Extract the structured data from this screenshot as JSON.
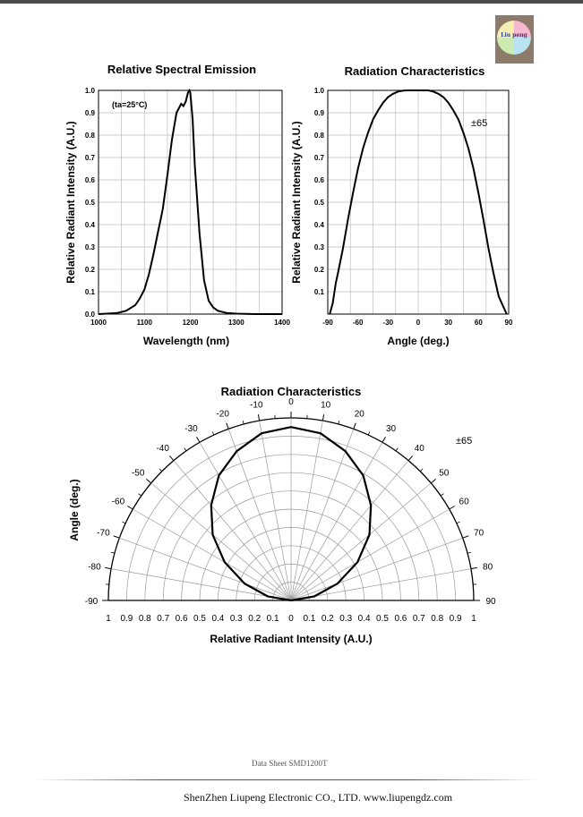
{
  "footer": {
    "sheet": "Data Sheet SMD1200T",
    "company": "ShenZhen Liupeng Electronic CO., LTD. www.liupengdz.com"
  },
  "logo": {
    "text": "Liu peng"
  },
  "chart_data": [
    {
      "type": "line",
      "title": "Relative Spectral Emission",
      "xlabel": "Wavelength (nm)",
      "ylabel": "Relative Radiant Intensity (A.U.)",
      "annotation": "(ta=25°C)",
      "xlim": [
        1000,
        1400
      ],
      "ylim": [
        0,
        1.0
      ],
      "x_ticks": [
        1000,
        1100,
        1200,
        1300,
        1400
      ],
      "y_ticks": [
        "0.0",
        "0.1",
        "0.2",
        "0.3",
        "0.4",
        "0.5",
        "0.6",
        "0.7",
        "0.8",
        "0.9",
        "1.0"
      ],
      "grid": true,
      "series": [
        {
          "x": [
            1000,
            1040,
            1060,
            1080,
            1090,
            1100,
            1110,
            1120,
            1130,
            1135,
            1140,
            1150,
            1160,
            1170,
            1180,
            1185,
            1190,
            1195,
            1198,
            1200,
            1205,
            1210,
            1220,
            1230,
            1240,
            1250,
            1260,
            1280,
            1300,
            1340,
            1400
          ],
          "y": [
            0.0,
            0.005,
            0.015,
            0.04,
            0.07,
            0.11,
            0.18,
            0.27,
            0.37,
            0.42,
            0.47,
            0.62,
            0.78,
            0.9,
            0.94,
            0.93,
            0.95,
            0.99,
            1.0,
            0.99,
            0.87,
            0.66,
            0.36,
            0.15,
            0.06,
            0.03,
            0.015,
            0.005,
            0.002,
            0.0,
            0.0
          ]
        }
      ]
    },
    {
      "type": "line",
      "title": "Radiation Characteristics",
      "xlabel": "Angle (deg.)",
      "ylabel": "Relative Radiant Intensity (A.U.)",
      "annotation": "±65",
      "xlim": [
        -90,
        90
      ],
      "ylim": [
        0,
        1.0
      ],
      "x_ticks": [
        -90,
        -60,
        -30,
        0,
        30,
        60,
        90
      ],
      "y_ticks": [
        "0.1",
        "0.2",
        "0.3",
        "0.4",
        "0.5",
        "0.6",
        "0.7",
        "0.8",
        "0.9",
        "1.0"
      ],
      "grid": true,
      "series": [
        {
          "x": [
            -88,
            -85,
            -82,
            -80,
            -75,
            -70,
            -65,
            -60,
            -55,
            -50,
            -45,
            -40,
            -35,
            -30,
            -25,
            -20,
            -15,
            -10,
            -5,
            0,
            5,
            10,
            15,
            20,
            25,
            30,
            35,
            40,
            45,
            50,
            55,
            60,
            65,
            70,
            75,
            80,
            82,
            85,
            88
          ],
          "y": [
            0.0,
            0.05,
            0.14,
            0.18,
            0.29,
            0.42,
            0.54,
            0.65,
            0.74,
            0.81,
            0.87,
            0.91,
            0.945,
            0.97,
            0.985,
            0.995,
            0.999,
            1.0,
            1.0,
            1.0,
            1.0,
            1.0,
            0.995,
            0.985,
            0.97,
            0.945,
            0.91,
            0.87,
            0.81,
            0.74,
            0.65,
            0.54,
            0.42,
            0.29,
            0.18,
            0.08,
            0.06,
            0.03,
            0.0
          ]
        }
      ]
    },
    {
      "type": "line",
      "subtype": "polar",
      "title": "Radiation Characteristics",
      "xlabel": "Relative Radiant Intensity (A.U.)",
      "ylabel": "Angle (deg.)",
      "annotation": "±65",
      "angle_ticks": [
        -90,
        -80,
        -70,
        -60,
        -50,
        -40,
        -30,
        -20,
        -10,
        0,
        10,
        20,
        30,
        40,
        50,
        60,
        70,
        80,
        90
      ],
      "radial_ticks": [
        "1",
        "0.9",
        "0.8",
        "0.7",
        "0.6",
        "0.5",
        "0.4",
        "0.3",
        "0.2",
        "0.1",
        "0",
        "0.1",
        "0.2",
        "0.3",
        "0.4",
        "0.5",
        "0.6",
        "0.7",
        "0.8",
        "0.9",
        "1"
      ],
      "grid": true,
      "series": [
        {
          "angle": [
            -90,
            -80,
            -70,
            -60,
            -50,
            -40,
            -30,
            -20,
            -10,
            0,
            10,
            20,
            30,
            40,
            50,
            60,
            70,
            80,
            90
          ],
          "r": [
            0.0,
            0.13,
            0.27,
            0.42,
            0.56,
            0.68,
            0.79,
            0.87,
            0.93,
            0.95,
            0.93,
            0.87,
            0.79,
            0.68,
            0.56,
            0.42,
            0.27,
            0.13,
            0.0
          ]
        }
      ]
    }
  ]
}
